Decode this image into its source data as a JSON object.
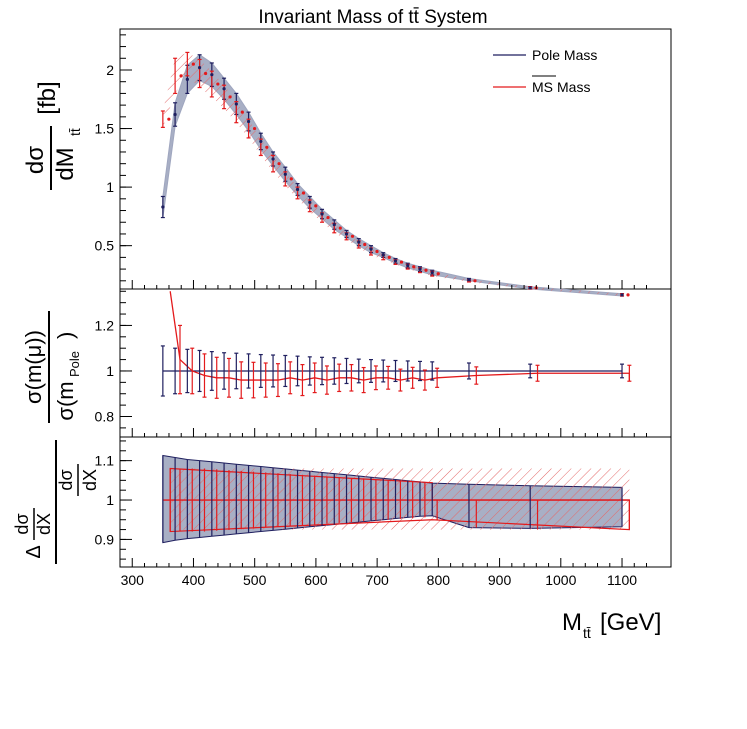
{
  "title": "Invariant Mass of tt̄ System",
  "x_label": {
    "main": "M",
    "sub": "tt̄",
    "unit": " [GeV]"
  },
  "x_ticks": [
    "300",
    "400",
    "500",
    "600",
    "700",
    "800",
    "900",
    "1000",
    "1100"
  ],
  "legend": {
    "pole": "Pole Mass",
    "ms_bar": "MS",
    "ms_rest": " Mass"
  },
  "panels": {
    "top": {
      "y_label": {
        "num": "dσ",
        "den": "dM",
        "den_sub": "tt̄",
        "unit": "[fb]"
      },
      "y_ticks": [
        "0.5",
        "1",
        "1.5",
        "2"
      ]
    },
    "mid": {
      "y_label": {
        "num": "σ(m(μ))",
        "den": "σ(m",
        "den_sub": "Pole",
        "den_close": ")"
      },
      "y_ticks": [
        "0.8",
        "1",
        "1.2"
      ]
    },
    "bot": {
      "y_label": {
        "num_delta": "Δ",
        "num_frac_top": "dσ",
        "num_frac_bot": "dX",
        "den_frac_top": "dσ",
        "den_frac_bot": "dX"
      },
      "y_ticks": [
        "0.9",
        "1",
        "1.1"
      ]
    }
  },
  "colors": {
    "pole": "#1f1f5f",
    "ms": "#e31a1c",
    "band": "#9fa6bf",
    "hatch": "#e36a6a"
  },
  "chart_data": [
    {
      "panel": "top",
      "type": "line",
      "xlabel": "M_tt [GeV]",
      "ylabel": "dσ/dM_tt [fb]",
      "xlim": [
        280,
        1180
      ],
      "ylim": [
        0.13,
        2.35
      ],
      "series": [
        {
          "name": "Pole Mass",
          "x": [
            350,
            370,
            390,
            410,
            430,
            450,
            470,
            490,
            510,
            530,
            550,
            570,
            590,
            610,
            630,
            650,
            670,
            690,
            710,
            730,
            750,
            770,
            790,
            850,
            950,
            1100
          ],
          "y": [
            0.83,
            1.62,
            1.92,
            2.02,
            1.96,
            1.84,
            1.71,
            1.56,
            1.39,
            1.24,
            1.11,
            0.98,
            0.87,
            0.77,
            0.68,
            0.6,
            0.53,
            0.47,
            0.42,
            0.37,
            0.33,
            0.3,
            0.27,
            0.21,
            0.14,
            0.08
          ],
          "err_up": [
            0.09,
            0.1,
            0.12,
            0.11,
            0.1,
            0.09,
            0.09,
            0.08,
            0.07,
            0.06,
            0.06,
            0.05,
            0.05,
            0.04,
            0.04,
            0.03,
            0.03,
            0.03,
            0.02,
            0.02,
            0.02,
            0.02,
            0.02,
            0.01,
            0.01,
            0.01
          ],
          "err_down": [
            0.09,
            0.1,
            0.12,
            0.11,
            0.1,
            0.09,
            0.09,
            0.08,
            0.07,
            0.06,
            0.06,
            0.05,
            0.05,
            0.04,
            0.04,
            0.03,
            0.03,
            0.03,
            0.02,
            0.02,
            0.02,
            0.02,
            0.02,
            0.01,
            0.01,
            0.01
          ]
        },
        {
          "name": "MS Mass",
          "x": [
            350,
            370,
            390,
            410,
            430,
            450,
            470,
            490,
            510,
            530,
            550,
            570,
            590,
            610,
            630,
            650,
            670,
            690,
            710,
            730,
            750,
            770,
            790,
            850,
            950,
            1100
          ],
          "y": [
            1.58,
            1.95,
            2.05,
            1.97,
            1.88,
            1.77,
            1.64,
            1.5,
            1.34,
            1.2,
            1.07,
            0.95,
            0.84,
            0.74,
            0.65,
            0.58,
            0.51,
            0.45,
            0.4,
            0.36,
            0.32,
            0.29,
            0.26,
            0.2,
            0.14,
            0.08
          ],
          "err_up": [
            0.07,
            0.15,
            0.1,
            0.12,
            0.11,
            0.1,
            0.09,
            0.08,
            0.07,
            0.07,
            0.06,
            0.05,
            0.05,
            0.04,
            0.04,
            0.03,
            0.03,
            0.03,
            0.02,
            0.02,
            0.02,
            0.02,
            0.02,
            0.01,
            0.01,
            0.01
          ],
          "err_down": [
            0.07,
            0.15,
            0.1,
            0.12,
            0.11,
            0.1,
            0.09,
            0.08,
            0.07,
            0.07,
            0.06,
            0.05,
            0.05,
            0.04,
            0.04,
            0.03,
            0.03,
            0.03,
            0.02,
            0.02,
            0.02,
            0.02,
            0.02,
            0.01,
            0.01,
            0.01
          ]
        }
      ]
    },
    {
      "panel": "mid",
      "type": "line",
      "ylabel": "σ(m(μ))/σ(m_Pole)",
      "xlim": [
        280,
        1180
      ],
      "ylim": [
        0.71,
        1.36
      ],
      "series": [
        {
          "name": "Pole Mass",
          "x": [
            350,
            370,
            390,
            410,
            430,
            450,
            470,
            490,
            510,
            530,
            550,
            570,
            590,
            610,
            630,
            650,
            670,
            690,
            710,
            730,
            750,
            770,
            790,
            850,
            950,
            1100
          ],
          "y": [
            1,
            1,
            1,
            1,
            1,
            1,
            1,
            1,
            1,
            1,
            1,
            1,
            1,
            1,
            1,
            1,
            1,
            1,
            1,
            1,
            1,
            1,
            1,
            1,
            1,
            1
          ],
          "err_up": [
            0.11,
            0.1,
            0.095,
            0.09,
            0.085,
            0.08,
            0.078,
            0.075,
            0.072,
            0.07,
            0.068,
            0.065,
            0.062,
            0.06,
            0.058,
            0.055,
            0.052,
            0.05,
            0.048,
            0.046,
            0.044,
            0.042,
            0.04,
            0.035,
            0.03,
            0.03
          ],
          "err_down": [
            0.11,
            0.1,
            0.095,
            0.09,
            0.085,
            0.08,
            0.078,
            0.075,
            0.072,
            0.07,
            0.068,
            0.065,
            0.062,
            0.06,
            0.058,
            0.055,
            0.052,
            0.05,
            0.048,
            0.046,
            0.044,
            0.042,
            0.04,
            0.035,
            0.03,
            0.03
          ]
        },
        {
          "name": "MS Mass",
          "x": [
            362,
            378,
            398,
            418,
            438,
            458,
            478,
            498,
            518,
            538,
            558,
            578,
            598,
            618,
            638,
            658,
            678,
            698,
            718,
            738,
            758,
            778,
            798,
            862,
            962,
            1112
          ],
          "y": [
            1.35,
            1.05,
            1.0,
            0.98,
            0.97,
            0.97,
            0.96,
            0.96,
            0.96,
            0.96,
            0.97,
            0.96,
            0.97,
            0.96,
            0.97,
            0.97,
            0.96,
            0.97,
            0.97,
            0.96,
            0.97,
            0.96,
            0.97,
            0.98,
            0.99,
            0.99
          ],
          "err_up": [
            0.0,
            0.15,
            0.1,
            0.095,
            0.09,
            0.085,
            0.08,
            0.078,
            0.075,
            0.072,
            0.07,
            0.068,
            0.065,
            0.062,
            0.06,
            0.058,
            0.055,
            0.052,
            0.05,
            0.048,
            0.046,
            0.044,
            0.042,
            0.038,
            0.035,
            0.035
          ],
          "err_down": [
            0.0,
            0.15,
            0.1,
            0.095,
            0.09,
            0.085,
            0.08,
            0.078,
            0.075,
            0.072,
            0.07,
            0.068,
            0.065,
            0.062,
            0.06,
            0.058,
            0.055,
            0.052,
            0.05,
            0.048,
            0.046,
            0.044,
            0.042,
            0.038,
            0.035,
            0.035
          ]
        }
      ]
    },
    {
      "panel": "bot",
      "type": "area",
      "ylabel": "Δ(dσ/dX)/(dσ/dX)",
      "xlim": [
        280,
        1180
      ],
      "ylim": [
        0.83,
        1.16
      ],
      "series": [
        {
          "name": "Pole Mass",
          "x": [
            350,
            370,
            390,
            410,
            430,
            450,
            470,
            490,
            510,
            530,
            550,
            570,
            590,
            610,
            630,
            650,
            670,
            690,
            710,
            730,
            750,
            770,
            790,
            850,
            950,
            1100
          ],
          "err_up": [
            0.113,
            0.108,
            0.103,
            0.1,
            0.097,
            0.094,
            0.091,
            0.088,
            0.085,
            0.082,
            0.079,
            0.076,
            0.073,
            0.07,
            0.067,
            0.064,
            0.061,
            0.058,
            0.055,
            0.052,
            0.049,
            0.046,
            0.043,
            0.04,
            0.036,
            0.032
          ],
          "err_down": [
            0.108,
            0.102,
            0.098,
            0.095,
            0.092,
            0.089,
            0.086,
            0.083,
            0.08,
            0.077,
            0.074,
            0.071,
            0.068,
            0.065,
            0.062,
            0.059,
            0.056,
            0.053,
            0.05,
            0.047,
            0.044,
            0.041,
            0.04,
            0.07,
            0.072,
            0.068
          ]
        },
        {
          "name": "MS Mass",
          "x": [
            362,
            378,
            398,
            418,
            438,
            458,
            478,
            498,
            518,
            538,
            558,
            578,
            598,
            618,
            638,
            658,
            678,
            698,
            718,
            738,
            758,
            778,
            798,
            862,
            962,
            1112
          ],
          "err_up": [
            0.08,
            0.08,
            0.08,
            0.08,
            0.078,
            0.076,
            0.074,
            0.072,
            0.07,
            0.068,
            0.066,
            0.064,
            0.062,
            0.06,
            0.058,
            0.056,
            0.054,
            0.052,
            0.05,
            0.048,
            0.046,
            0.044,
            0.0,
            0.0,
            0.0,
            0.0
          ],
          "err_down": [
            0.08,
            0.08,
            0.08,
            0.08,
            0.078,
            0.076,
            0.074,
            0.072,
            0.07,
            0.068,
            0.066,
            0.064,
            0.062,
            0.06,
            0.058,
            0.056,
            0.054,
            0.052,
            0.05,
            0.048,
            0.046,
            0.044,
            0.05,
            0.07,
            0.075,
            0.075
          ]
        }
      ]
    }
  ]
}
